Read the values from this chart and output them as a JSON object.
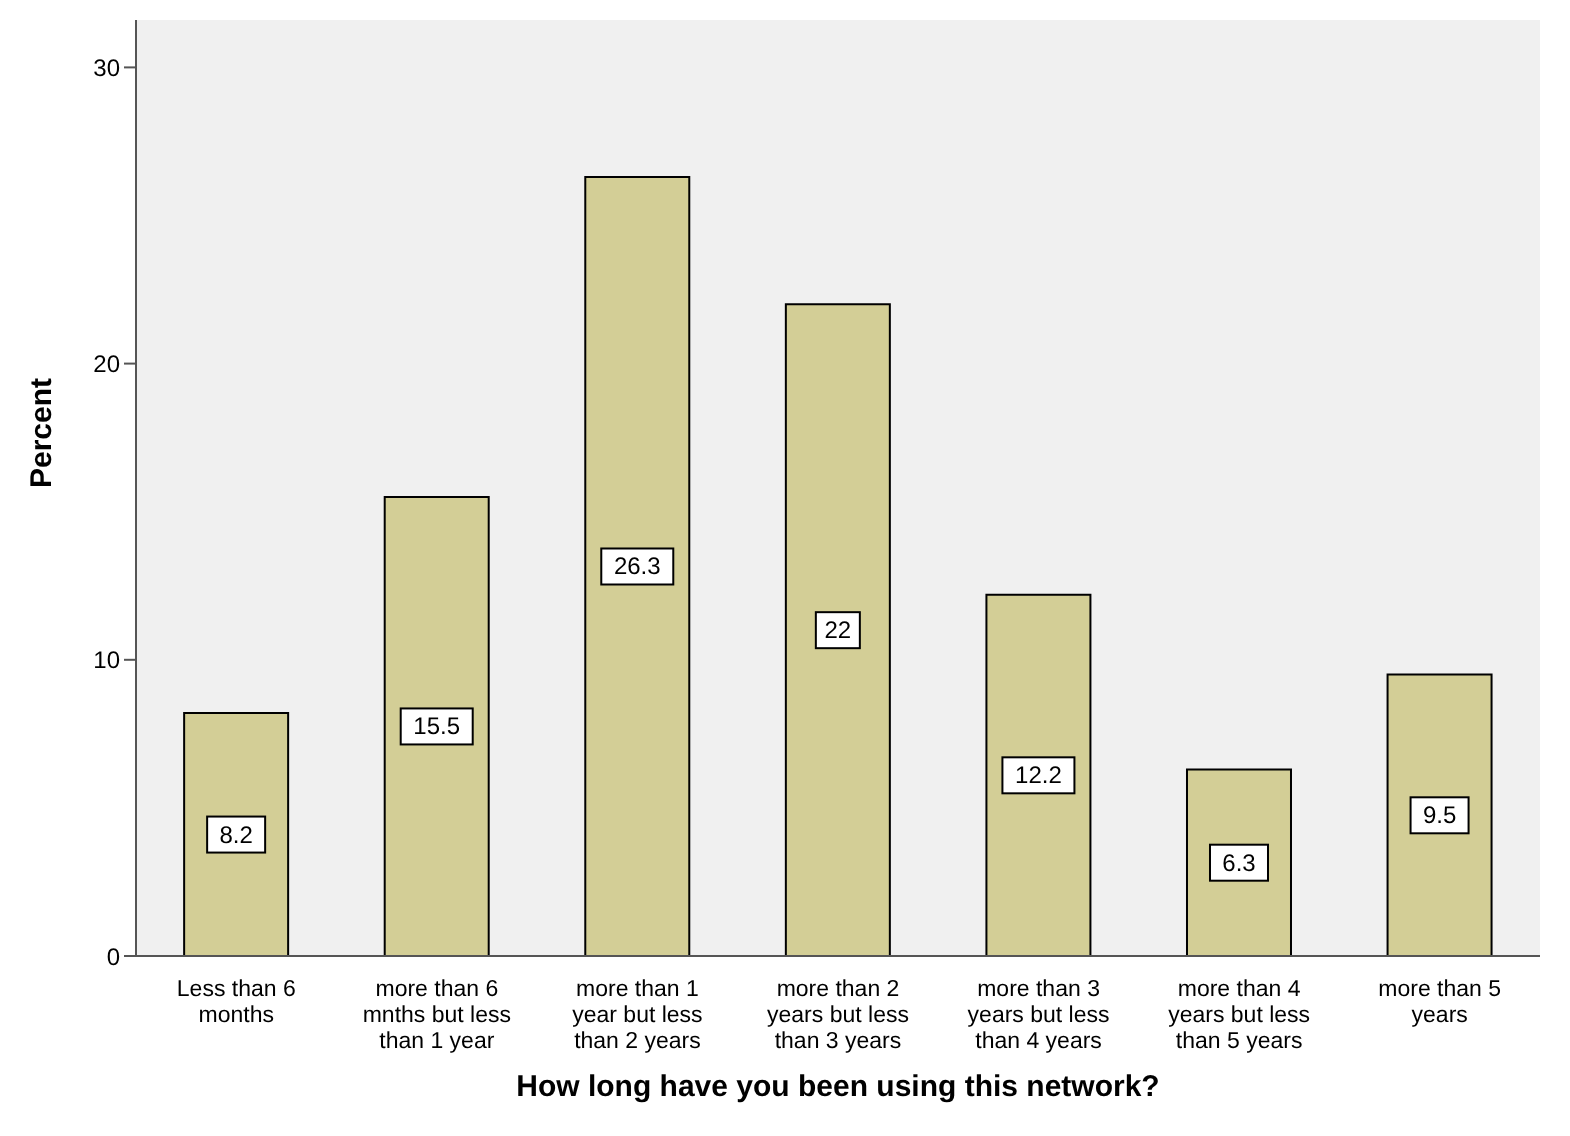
{
  "chart_data": {
    "type": "bar",
    "xlabel": "How long have you been using this network?",
    "ylabel": "Percent",
    "categories": [
      "Less than 6 months",
      "more than 6 mnths but less than 1 year",
      "more than 1 year but less than 2 years",
      "more than 2 years but less than 3 years",
      "more than 3 years but less than 4 years",
      "more than 4 years but less than 5 years",
      "more than 5 years"
    ],
    "values": [
      8.2,
      15.5,
      26.3,
      22,
      12.2,
      6.3,
      9.5
    ],
    "color": "#d3ce96",
    "ylim": [
      0,
      31.6
    ],
    "yticks": [
      0,
      10,
      20,
      30
    ],
    "grid": false,
    "data_labels": true
  }
}
